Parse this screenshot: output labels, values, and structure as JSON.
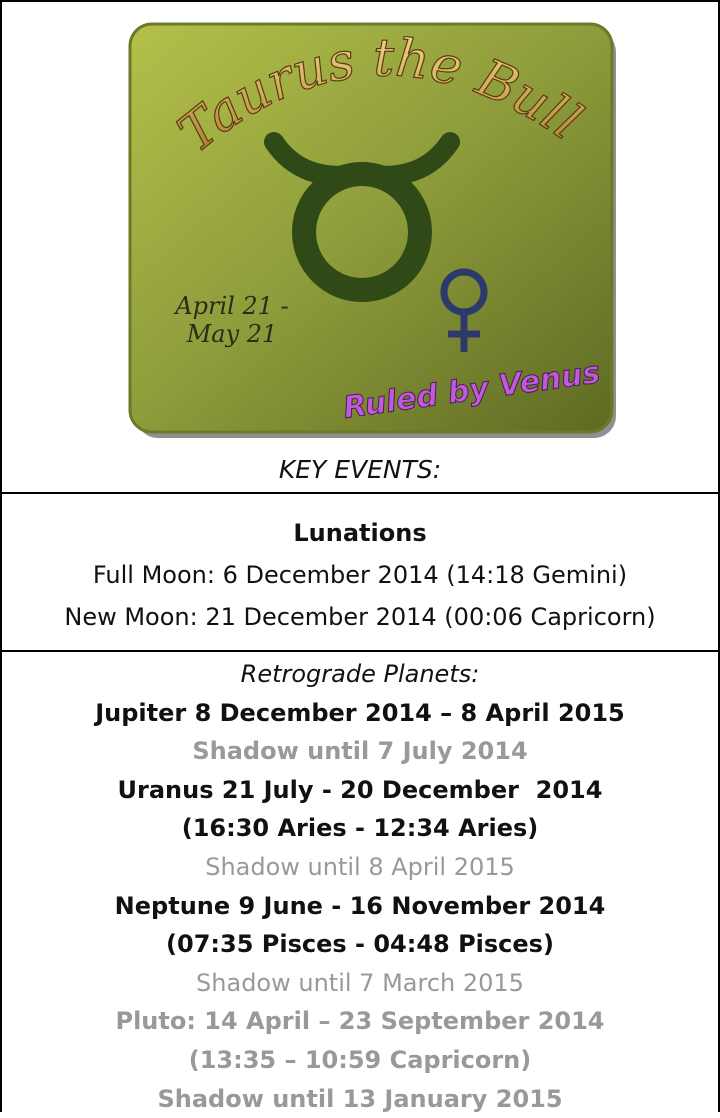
{
  "image": {
    "title": "Taurus the Bull",
    "dates": [
      "April 21 -",
      "May 21"
    ],
    "ruler": "Ruled by Venus"
  },
  "key_events": "KEY EVENTS:",
  "lunations": {
    "heading": "Lunations",
    "full_moon": "Full Moon: 6 December 2014 (14:18 Gemini)",
    "new_moon": "New Moon: 21 December 2014 (00:06 Capricorn)"
  },
  "retrograde": {
    "heading": "Retrograde Planets:",
    "lines": [
      "Jupiter 8 December 2014 – 8 April 2015",
      "Shadow until 7 July 2014",
      "Uranus 21 July - 20 December  2014",
      "(16:30 Aries - 12:34 Aries)",
      "Shadow until 8 April 2015",
      "Neptune 9 June - 16 November 2014",
      "(07:35 Pisces - 04:48 Pisces)",
      "Shadow until 7 March 2015",
      "Pluto: 14 April – 23 September 2014",
      "(13:35 – 10:59 Capricorn)",
      "Shadow until 13 January 2015"
    ]
  }
}
